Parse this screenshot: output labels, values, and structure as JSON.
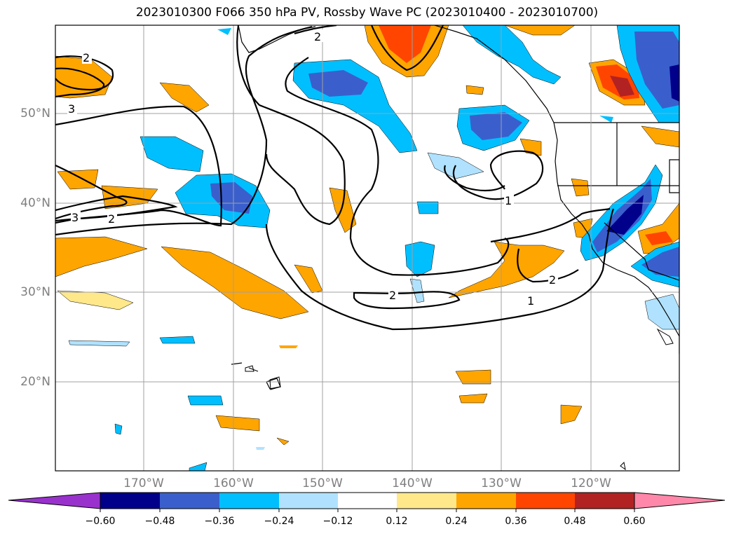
{
  "title": "2023010300 F066 350 hPa PV, Rossby Wave PC (2023010400 - 2023010700)",
  "lat_labels": [
    "50°N",
    "40°N",
    "30°N",
    "20°N"
  ],
  "lon_labels": [
    "170°W",
    "160°W",
    "150°W",
    "140°W",
    "130°W",
    "120°W"
  ],
  "contour_labels": [
    "2",
    "2",
    "3",
    "3",
    "2",
    "1",
    "2",
    "2",
    "1"
  ],
  "colorbar": {
    "ticks": [
      "−0.60",
      "−0.48",
      "−0.36",
      "−0.24",
      "−0.12",
      "0.12",
      "0.24",
      "0.36",
      "0.48",
      "0.60"
    ],
    "colors": [
      "#9932cc",
      "#00008b",
      "#3a5fcd",
      "#00bfff",
      "#b0e2ff",
      "#ffffff",
      "#ffe88a",
      "#ffa500",
      "#ff4500",
      "#b22222",
      "#ff88aa"
    ]
  }
}
